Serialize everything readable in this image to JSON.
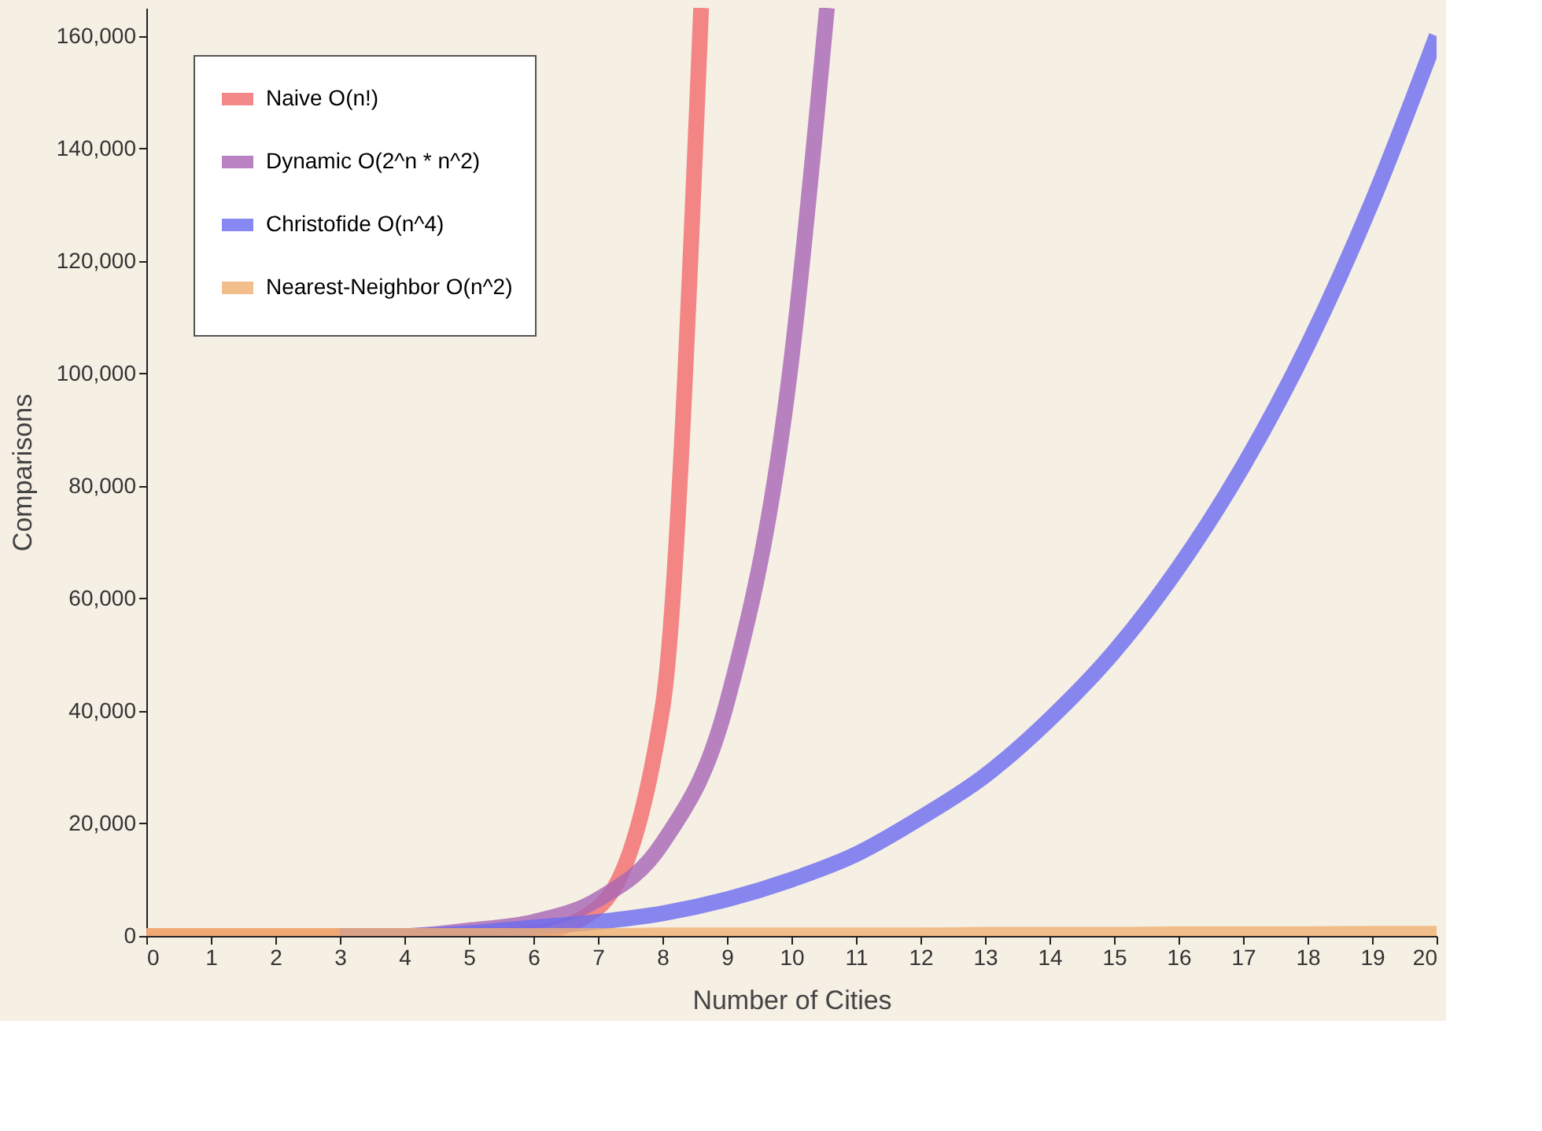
{
  "chart_data": {
    "type": "line",
    "xlabel": "Number of Cities",
    "ylabel": "Comparisons",
    "xlim": [
      0,
      20
    ],
    "xticks": [
      0,
      1,
      2,
      3,
      4,
      5,
      6,
      7,
      8,
      9,
      10,
      11,
      12,
      13,
      14,
      15,
      16,
      17,
      18,
      19,
      20
    ],
    "ylim": [
      0,
      165000
    ],
    "yticks": [
      {
        "value": 0,
        "label": "0"
      },
      {
        "value": 20000,
        "label": "20,000"
      },
      {
        "value": 40000,
        "label": "40,000"
      },
      {
        "value": 60000,
        "label": "60,000"
      },
      {
        "value": 80000,
        "label": "80,000"
      },
      {
        "value": 100000,
        "label": "100,000"
      },
      {
        "value": 120000,
        "label": "120,000"
      },
      {
        "value": 140000,
        "label": "140,000"
      },
      {
        "value": 160000,
        "label": "160,000"
      }
    ],
    "grid": false,
    "legend": "top left",
    "marker": "none",
    "line_style": "solid",
    "series": [
      {
        "name": "Naive O(n!)",
        "color": "#f26b6b",
        "x": [
          0,
          1,
          2,
          3,
          4,
          5,
          6,
          7,
          8,
          8.6
        ],
        "values": [
          0,
          0,
          0,
          0,
          0,
          0,
          500,
          5000,
          40500,
          165000
        ]
      },
      {
        "name": "Dynamic O(2^n * n^2)",
        "color": "#a865b5",
        "x": [
          3,
          4,
          5,
          6,
          7,
          8,
          9,
          10,
          10.55
        ],
        "values": [
          0,
          0,
          1000,
          2500,
          6500,
          16500,
          41500,
          102500,
          165000
        ]
      },
      {
        "name": "Christofide O(n^4)",
        "color": "#6b6bf0",
        "x": [
          3,
          4,
          5,
          6,
          7,
          8,
          9,
          10,
          11,
          12,
          13,
          14,
          15,
          16,
          17,
          18,
          19,
          20
        ],
        "values": [
          0,
          0,
          500,
          1500,
          2500,
          4000,
          6500,
          10000,
          14500,
          21000,
          28500,
          38500,
          50500,
          65500,
          83500,
          105000,
          130500,
          160000
        ]
      },
      {
        "name": "Nearest-Neighbor O(n^2)",
        "color": "#f0b070",
        "x": [
          0,
          1,
          2,
          3,
          4,
          5,
          6,
          7,
          8,
          9,
          10,
          11,
          12,
          13,
          14,
          15,
          16,
          17,
          18,
          19,
          20
        ],
        "values": [
          0,
          0,
          0,
          0,
          0,
          0,
          0,
          0,
          100,
          100,
          100,
          100,
          100,
          200,
          200,
          200,
          300,
          300,
          300,
          400,
          400
        ]
      }
    ]
  }
}
